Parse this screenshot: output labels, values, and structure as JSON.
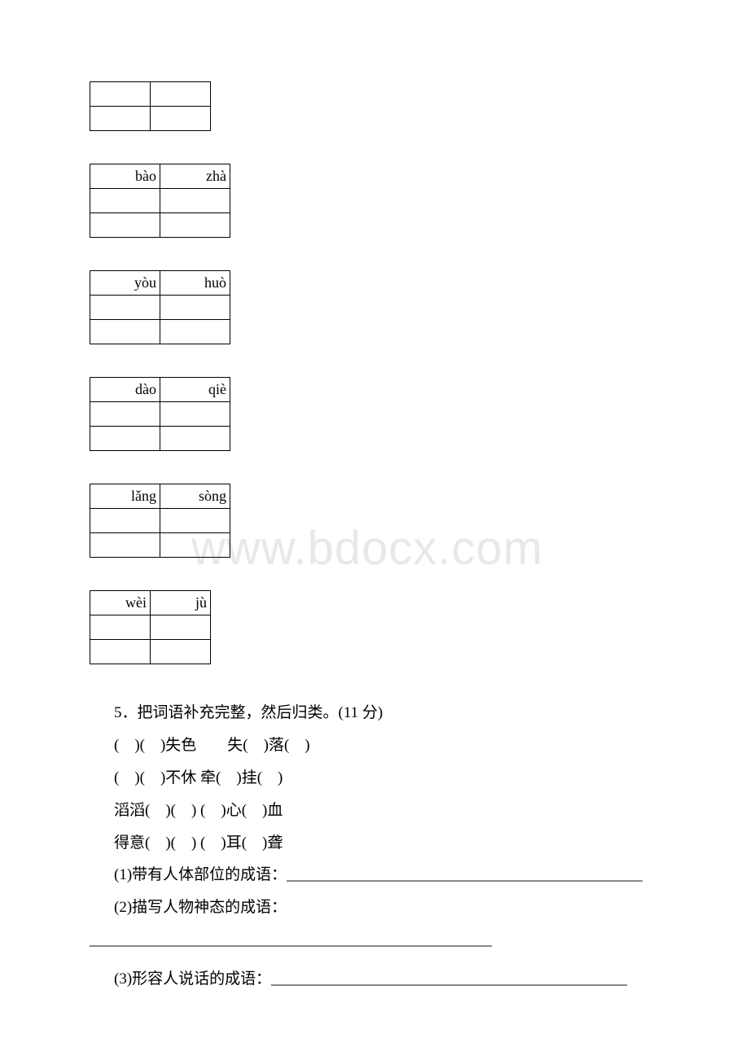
{
  "watermark_text": "www.bdocx.com",
  "tables": [
    {
      "class": "small-table",
      "cells": [
        [
          "",
          ""
        ],
        [
          "",
          ""
        ]
      ]
    },
    {
      "class": "wide-table",
      "cells": [
        [
          "bào",
          "zhà"
        ],
        [
          "",
          ""
        ],
        [
          "",
          ""
        ]
      ]
    },
    {
      "class": "wide-table",
      "cells": [
        [
          "yòu",
          "huò"
        ],
        [
          "",
          ""
        ],
        [
          "",
          ""
        ]
      ]
    },
    {
      "class": "wide-table",
      "cells": [
        [
          "dào",
          "qiè"
        ],
        [
          "",
          ""
        ],
        [
          "",
          ""
        ]
      ]
    },
    {
      "class": "wide-table",
      "cells": [
        [
          "lǎng",
          "sòng"
        ],
        [
          "",
          ""
        ],
        [
          "",
          ""
        ]
      ]
    },
    {
      "class": "small-table",
      "cells": [
        [
          "wèi",
          "jù"
        ],
        [
          "",
          ""
        ],
        [
          "",
          ""
        ]
      ]
    }
  ],
  "question_title": "5．把词语补充完整，然后归类。(11 分)",
  "lines": [
    "(　)(　)失色　　失(　)落(　)",
    "(　)(　)不休  牵(　)挂(　)",
    "滔滔(　)(　) (　)心(　)血",
    "得意(　)(　) (　)耳(　)聋"
  ],
  "sub1_label": "(1)带有人体部位的成语：",
  "sub1_blank": "______________________________________________",
  "sub2_label": "(2)描写人物神态的成语：",
  "sub2_blank": "____________________________________________________",
  "sub3_label": "(3)形容人说话的成语：",
  "sub3_blank": "______________________________________________"
}
